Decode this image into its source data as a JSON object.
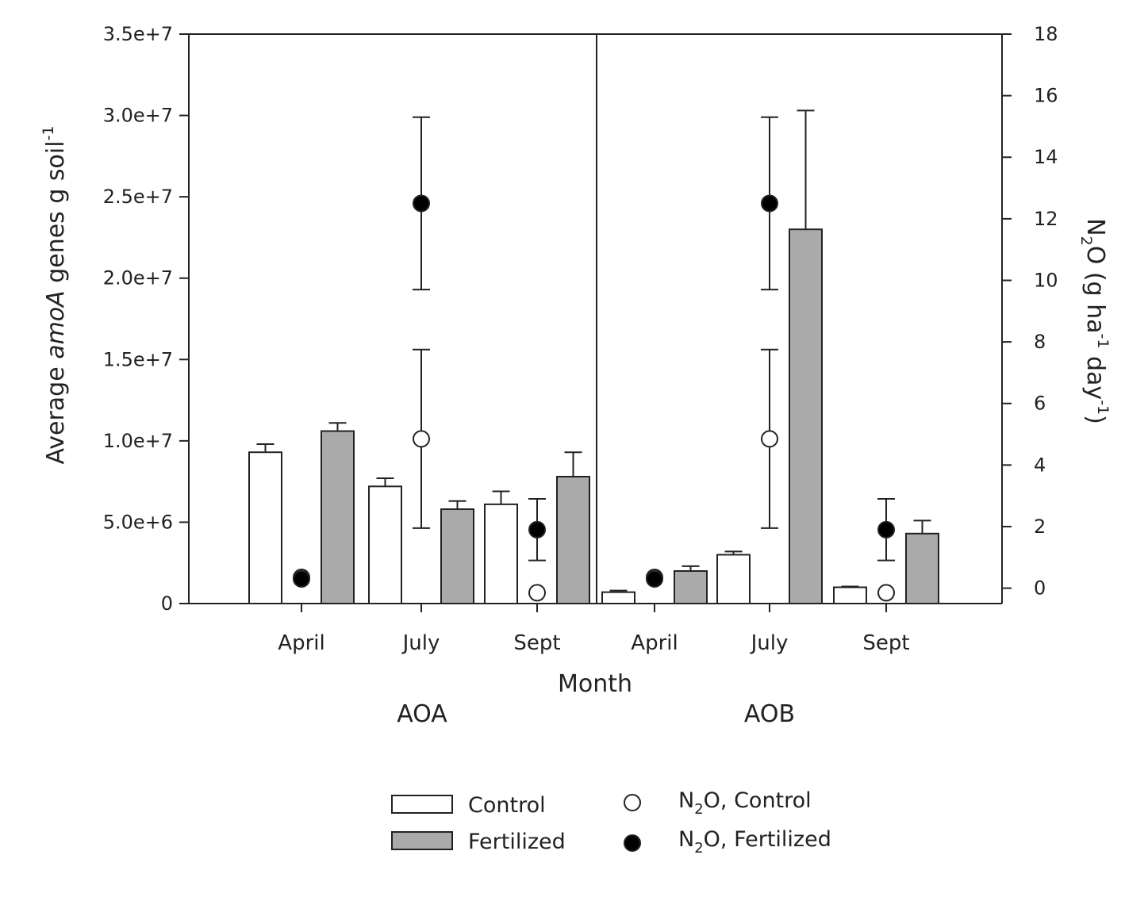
{
  "chart_data": {
    "type": "bar",
    "xlabel": "Month",
    "group_labels": [
      "AOA",
      "AOB"
    ],
    "categories": [
      "April",
      "July",
      "Sept",
      "April",
      "July",
      "Sept"
    ],
    "ylabel_left": {
      "pre": "Average ",
      "italic": "amoA",
      "post": " genes g soil",
      "sup": "-1"
    },
    "ylabel_right": {
      "a": "N",
      "a_sub": "2",
      "b": "O (g ha",
      "b_sup": "-1",
      "c": " day",
      "c_sup": "-1",
      "d": ")"
    },
    "ylim_left": [
      0,
      35000000
    ],
    "yticks_left": [
      "0",
      "5.0e+6",
      "1.0e+7",
      "1.5e+7",
      "2.0e+7",
      "2.5e+7",
      "3.0e+7",
      "3.5e+7"
    ],
    "ylim_right": [
      -0.5,
      18
    ],
    "yticks_right": [
      "0",
      "2",
      "4",
      "6",
      "8",
      "10",
      "12",
      "14",
      "16",
      "18"
    ],
    "series": [
      {
        "name": "Control",
        "kind": "bar",
        "color": "#ffffff",
        "values": [
          9300000,
          7200000,
          6100000,
          700000,
          3000000,
          1000000
        ],
        "err": [
          500000,
          500000,
          800000,
          100000,
          200000,
          50000
        ]
      },
      {
        "name": "Fertilized",
        "kind": "bar",
        "color": "#aaaaaa",
        "values": [
          10600000,
          5800000,
          7800000,
          2000000,
          23000000,
          4300000
        ],
        "err": [
          500000,
          500000,
          1500000,
          300000,
          7300000,
          800000
        ]
      },
      {
        "name": "N2O, Control",
        "kind": "point",
        "color": "#ffffff",
        "values": [
          0.35,
          4.85,
          -0.15,
          0.35,
          4.85,
          -0.15
        ],
        "err": [
          0,
          2.9,
          0,
          0,
          2.9,
          0
        ]
      },
      {
        "name": "N2O, Fertilized",
        "kind": "point",
        "color": "#000000",
        "values": [
          0.3,
          12.5,
          1.9,
          0.3,
          12.5,
          1.9
        ],
        "err": [
          0,
          2.8,
          1.0,
          0,
          2.8,
          1.0
        ]
      }
    ]
  },
  "legend": [
    {
      "pre": "Control",
      "sub": "",
      "post": "",
      "kind": "bar",
      "fill": "#ffffff"
    },
    {
      "pre": "Fertilized",
      "sub": "",
      "post": "",
      "kind": "bar",
      "fill": "#aaaaaa"
    },
    {
      "pre": "N",
      "sub": "2",
      "post": "O, Control",
      "kind": "point",
      "fill": "#ffffff"
    },
    {
      "pre": "N",
      "sub": "2",
      "post": "O, Fertilized",
      "kind": "point",
      "fill": "#000000"
    }
  ]
}
